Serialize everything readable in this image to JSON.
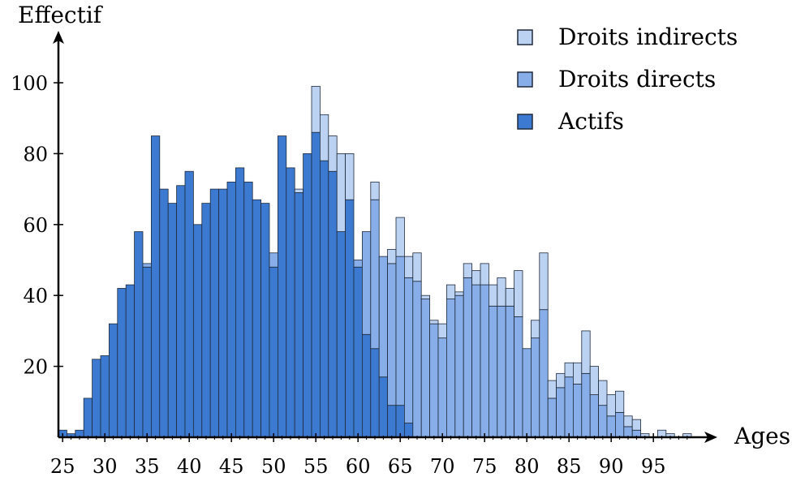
{
  "chart_data": {
    "type": "bar",
    "stacked": true,
    "xlabel": "Ages",
    "ylabel": "Effectif",
    "ylim": [
      0,
      100
    ],
    "xlim": [
      24.5,
      99.5
    ],
    "xticks": [
      25,
      30,
      35,
      40,
      45,
      50,
      55,
      60,
      65,
      70,
      75,
      80,
      85,
      90,
      95
    ],
    "yticks": [
      20,
      40,
      60,
      80,
      100
    ],
    "legend_position": "top-right",
    "colors": {
      "Actifs": "#3b7ad0",
      "Droits directs": "#87aee8",
      "Droits indirects": "#bcd2f2"
    },
    "x": [
      25,
      26,
      27,
      28,
      29,
      30,
      31,
      32,
      33,
      34,
      35,
      36,
      37,
      38,
      39,
      40,
      41,
      42,
      43,
      44,
      45,
      46,
      47,
      48,
      49,
      50,
      51,
      52,
      53,
      54,
      55,
      56,
      57,
      58,
      59,
      60,
      61,
      62,
      63,
      64,
      65,
      66,
      67,
      68,
      69,
      70,
      71,
      72,
      73,
      74,
      75,
      76,
      77,
      78,
      79,
      80,
      81,
      82,
      83,
      84,
      85,
      86,
      87,
      88,
      89,
      90,
      91,
      92,
      93,
      94,
      95,
      96,
      97,
      98,
      99
    ],
    "series": [
      {
        "name": "Actifs",
        "values": [
          2,
          1,
          2,
          11,
          22,
          23,
          32,
          42,
          43,
          58,
          48,
          85,
          70,
          66,
          71,
          75,
          60,
          66,
          70,
          70,
          72,
          76,
          72,
          67,
          66,
          48,
          85,
          76,
          69,
          80,
          86,
          78,
          75,
          58,
          67,
          48,
          29,
          25,
          17,
          9,
          9,
          4,
          0,
          0,
          0,
          0,
          0,
          0,
          0,
          0,
          0,
          0,
          0,
          0,
          0,
          0,
          0,
          0,
          0,
          0,
          0,
          0,
          0,
          0,
          0,
          0,
          0,
          0,
          0,
          0,
          0,
          0,
          0,
          0,
          0
        ]
      },
      {
        "name": "Droits directs",
        "values": [
          0,
          0,
          0,
          0,
          0,
          0,
          0,
          0,
          0,
          0,
          1,
          0,
          0,
          0,
          0,
          0,
          0,
          0,
          0,
          0,
          0,
          0,
          0,
          0,
          0,
          4,
          0,
          0,
          0,
          0,
          0,
          0,
          0,
          0,
          0,
          2,
          29,
          42,
          34,
          40,
          42,
          41,
          44,
          39,
          32,
          28,
          39,
          40,
          45,
          43,
          43,
          37,
          37,
          37,
          34,
          25,
          28,
          36,
          11,
          14,
          17,
          15,
          18,
          12,
          9,
          6,
          7,
          3,
          2,
          0,
          0,
          0,
          0,
          0,
          0
        ]
      },
      {
        "name": "Droits indirects",
        "values": [
          0,
          0,
          0,
          0,
          0,
          0,
          0,
          0,
          0,
          0,
          0,
          0,
          0,
          0,
          0,
          0,
          0,
          0,
          0,
          0,
          0,
          0,
          0,
          0,
          0,
          0,
          0,
          0,
          1,
          0,
          13,
          13,
          10,
          22,
          13,
          0,
          0,
          5,
          0,
          4,
          11,
          6,
          8,
          1,
          1,
          4,
          4,
          1,
          4,
          4,
          6,
          6,
          8,
          5,
          13,
          0,
          5,
          16,
          5,
          4,
          4,
          6,
          12,
          8,
          7,
          6,
          6,
          3,
          3,
          1,
          0,
          2,
          1,
          0,
          1
        ]
      }
    ]
  }
}
